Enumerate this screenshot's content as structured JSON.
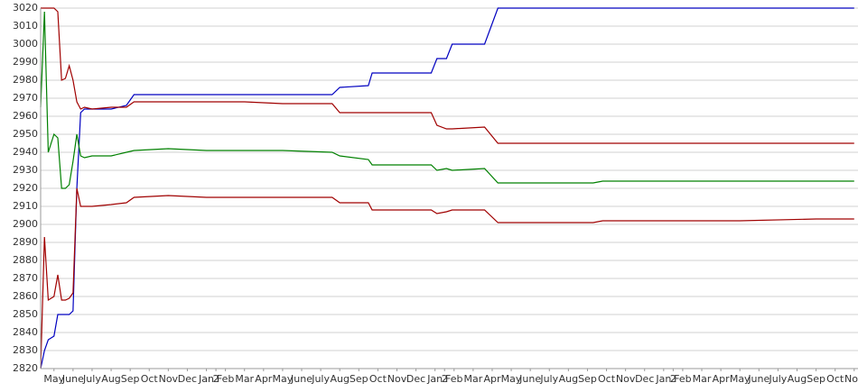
{
  "chart_data": {
    "type": "line",
    "x": [
      -0.7,
      -0.5,
      -0.3,
      0,
      0.2,
      0.4,
      0.6,
      0.8,
      1.0,
      1.2,
      1.4,
      1.6,
      2,
      3,
      3.8,
      4.2,
      6,
      8,
      10,
      12,
      14.6,
      15,
      16.5,
      16.7,
      19.8,
      20.1,
      20.6,
      20.9,
      22.6,
      23.3,
      25,
      28.3,
      28.8,
      32,
      36,
      40,
      42
    ],
    "series": [
      {
        "color": "#0000c0",
        "values": [
          2820,
          2830,
          2836,
          2838,
          2850,
          2850,
          2850,
          2850,
          2852,
          2920,
          2962,
          2964,
          2964,
          2964,
          2966,
          2972,
          2972,
          2972,
          2972,
          2972,
          2972,
          2976,
          2977,
          2984,
          2984,
          2992,
          2992,
          3000,
          3000,
          3020,
          3020,
          3020,
          3020,
          3020,
          3020,
          3020,
          3020
        ]
      },
      {
        "color": "#a00000",
        "values": [
          3020,
          3020,
          3020,
          3020,
          3018,
          2980,
          2981,
          2988,
          2980,
          2968,
          2964,
          2965,
          2964,
          2965,
          2965,
          2968,
          2968,
          2968,
          2968,
          2967,
          2967,
          2962,
          2962,
          2962,
          2962,
          2955,
          2953,
          2953,
          2954,
          2945,
          2945,
          2945,
          2945,
          2945,
          2945,
          2945,
          2945
        ]
      },
      {
        "color": "#008000",
        "values": [
          2965,
          3018,
          2940,
          2950,
          2948,
          2920,
          2920,
          2922,
          2935,
          2950,
          2938,
          2937,
          2938,
          2938,
          2940,
          2941,
          2942,
          2941,
          2941,
          2941,
          2940,
          2938,
          2936,
          2933,
          2933,
          2930,
          2931,
          2930,
          2931,
          2923,
          2923,
          2923,
          2924,
          2924,
          2924,
          2924,
          2924
        ]
      },
      {
        "color": "#a00000",
        "values": [
          2820,
          2893,
          2858,
          2860,
          2872,
          2858,
          2858,
          2859,
          2862,
          2920,
          2910,
          2910,
          2910,
          2911,
          2912,
          2915,
          2916,
          2915,
          2915,
          2915,
          2915,
          2912,
          2912,
          2908,
          2908,
          2906,
          2907,
          2908,
          2908,
          2901,
          2901,
          2901,
          2902,
          2902,
          2902,
          2903,
          2903
        ]
      }
    ],
    "xlim": [
      -0.7,
      42.2
    ],
    "xticks": [
      {
        "value": 0,
        "label": "May"
      },
      {
        "value": 1,
        "label": "June"
      },
      {
        "value": 2,
        "label": "July"
      },
      {
        "value": 3,
        "label": "Aug"
      },
      {
        "value": 4,
        "label": "Sep"
      },
      {
        "value": 5,
        "label": "Oct"
      },
      {
        "value": 6,
        "label": "Nov"
      },
      {
        "value": 7,
        "label": "Dec"
      },
      {
        "value": 8,
        "label": "Jan"
      },
      {
        "value": 8.5,
        "label": "2"
      },
      {
        "value": 9,
        "label": "Feb"
      },
      {
        "value": 10,
        "label": "Mar"
      },
      {
        "value": 11,
        "label": "Apr"
      },
      {
        "value": 12,
        "label": "May"
      },
      {
        "value": 13,
        "label": "June"
      },
      {
        "value": 14,
        "label": "July"
      },
      {
        "value": 15,
        "label": "Aug"
      },
      {
        "value": 16,
        "label": "Sep"
      },
      {
        "value": 17,
        "label": "Oct"
      },
      {
        "value": 18,
        "label": "Nov"
      },
      {
        "value": 19,
        "label": "Dec"
      },
      {
        "value": 20,
        "label": "Jan"
      },
      {
        "value": 20.5,
        "label": "2"
      },
      {
        "value": 21,
        "label": "Feb"
      },
      {
        "value": 22,
        "label": "Mar"
      },
      {
        "value": 23,
        "label": "Apr"
      },
      {
        "value": 24,
        "label": "May"
      },
      {
        "value": 25,
        "label": "June"
      },
      {
        "value": 26,
        "label": "July"
      },
      {
        "value": 27,
        "label": "Aug"
      },
      {
        "value": 28,
        "label": "Sep"
      },
      {
        "value": 29,
        "label": "Oct"
      },
      {
        "value": 30,
        "label": "Nov"
      },
      {
        "value": 31,
        "label": "Dec"
      },
      {
        "value": 32,
        "label": "Jan"
      },
      {
        "value": 32.5,
        "label": "2"
      },
      {
        "value": 33,
        "label": "Feb"
      },
      {
        "value": 34,
        "label": "Mar"
      },
      {
        "value": 35,
        "label": "Apr"
      },
      {
        "value": 36,
        "label": "May"
      },
      {
        "value": 37,
        "label": "June"
      },
      {
        "value": 38,
        "label": "July"
      },
      {
        "value": 39,
        "label": "Aug"
      },
      {
        "value": 40,
        "label": "Sep"
      },
      {
        "value": 41,
        "label": "Oct"
      },
      {
        "value": 42,
        "label": "Nov"
      }
    ],
    "ylim": [
      2820,
      3020
    ],
    "yticks": [
      2820,
      2830,
      2840,
      2850,
      2860,
      2870,
      2880,
      2890,
      2900,
      2910,
      2920,
      2930,
      2940,
      2950,
      2960,
      2970,
      2980,
      2990,
      3000,
      3010,
      3020
    ],
    "grid": true
  }
}
